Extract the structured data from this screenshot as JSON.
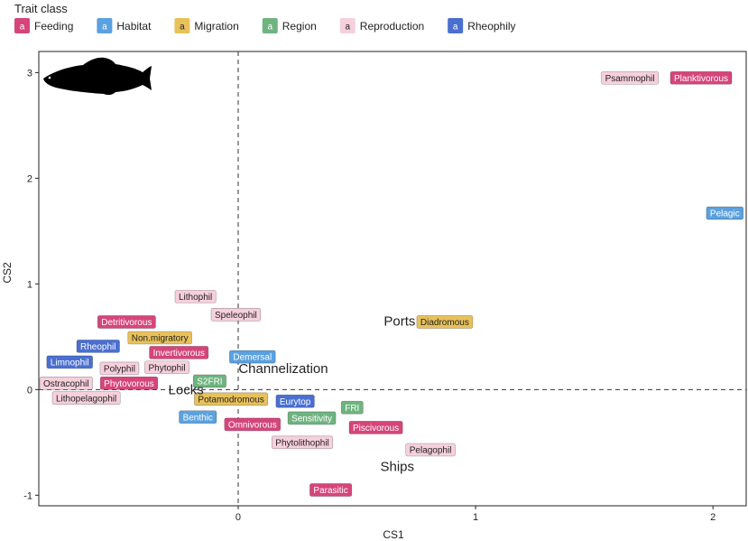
{
  "chart_data": {
    "type": "scatter",
    "xlabel": "CS1",
    "ylabel": "CS2",
    "xlim": [
      -0.84,
      2.14
    ],
    "ylim": [
      -1.1,
      3.2
    ],
    "xticks": [
      0,
      1,
      2
    ],
    "yticks": [
      -1,
      0,
      1,
      2,
      3
    ],
    "reference_lines": {
      "x": 0,
      "y": 0,
      "style": "dashed"
    },
    "legend": {
      "title": "Trait class",
      "marker_text": "a",
      "placement": "top",
      "entries": [
        {
          "name": "Feeding",
          "color": "#d6457a",
          "text_color": "#ffffff"
        },
        {
          "name": "Habitat",
          "color": "#5aa1e0",
          "text_color": "#ffffff"
        },
        {
          "name": "Migration",
          "color": "#e8c15a",
          "text_color": "#222222"
        },
        {
          "name": "Region",
          "color": "#6fb47f",
          "text_color": "#ffffff"
        },
        {
          "name": "Reproduction",
          "color": "#f6d0dc",
          "text_color": "#222222"
        },
        {
          "name": "Rheophily",
          "color": "#4a6fd1",
          "text_color": "#ffffff"
        }
      ]
    },
    "traits": [
      {
        "label": "Psammophil",
        "class": "Reproduction",
        "x": 1.65,
        "y": 2.95
      },
      {
        "label": "Planktivorous",
        "class": "Feeding",
        "x": 1.95,
        "y": 2.95
      },
      {
        "label": "Pelagic",
        "class": "Habitat",
        "x": 2.05,
        "y": 1.67
      },
      {
        "label": "Lithophil",
        "class": "Reproduction",
        "x": -0.18,
        "y": 0.88
      },
      {
        "label": "Speleophil",
        "class": "Reproduction",
        "x": -0.01,
        "y": 0.71
      },
      {
        "label": "Detritivorous",
        "class": "Feeding",
        "x": -0.47,
        "y": 0.64
      },
      {
        "label": "Diadromous",
        "class": "Migration",
        "x": 0.87,
        "y": 0.64
      },
      {
        "label": "Non.migratory",
        "class": "Migration",
        "x": -0.33,
        "y": 0.49
      },
      {
        "label": "Rheophil",
        "class": "Rheophily",
        "x": -0.59,
        "y": 0.41
      },
      {
        "label": "Invertivorous",
        "class": "Feeding",
        "x": -0.25,
        "y": 0.35
      },
      {
        "label": "Demersal",
        "class": "Habitat",
        "x": 0.06,
        "y": 0.31
      },
      {
        "label": "Limnophil",
        "class": "Rheophily",
        "x": -0.71,
        "y": 0.26
      },
      {
        "label": "Polyphil",
        "class": "Reproduction",
        "x": -0.5,
        "y": 0.2
      },
      {
        "label": "Phytophil",
        "class": "Reproduction",
        "x": -0.3,
        "y": 0.21
      },
      {
        "label": "S2FRI",
        "class": "Region",
        "x": -0.12,
        "y": 0.08
      },
      {
        "label": "Ostracophil",
        "class": "Reproduction",
        "x": -0.76,
        "y": 0.06
      },
      {
        "label": "Phytovorous",
        "class": "Feeding",
        "x": -0.46,
        "y": 0.06
      },
      {
        "label": "Lithopelagophil",
        "class": "Reproduction",
        "x": -0.64,
        "y": -0.08
      },
      {
        "label": "Potamodromous",
        "class": "Migration",
        "x": -0.03,
        "y": -0.09
      },
      {
        "label": "Eurytop",
        "class": "Rheophily",
        "x": 0.24,
        "y": -0.11
      },
      {
        "label": "FRI",
        "class": "Region",
        "x": 0.48,
        "y": -0.17
      },
      {
        "label": "Benthic",
        "class": "Habitat",
        "x": -0.17,
        "y": -0.26
      },
      {
        "label": "Sensitivity",
        "class": "Region",
        "x": 0.31,
        "y": -0.27
      },
      {
        "label": "Omnivorous",
        "class": "Feeding",
        "x": 0.06,
        "y": -0.33
      },
      {
        "label": "Piscivorous",
        "class": "Feeding",
        "x": 0.58,
        "y": -0.36
      },
      {
        "label": "Phytolithophil",
        "class": "Reproduction",
        "x": 0.27,
        "y": -0.5
      },
      {
        "label": "Pelagophil",
        "class": "Reproduction",
        "x": 0.81,
        "y": -0.57
      },
      {
        "label": "Parasitic",
        "class": "Feeding",
        "x": 0.39,
        "y": -0.95
      }
    ],
    "drivers": [
      {
        "label": "Ports",
        "x": 0.68,
        "y": 0.65
      },
      {
        "label": "Channelization",
        "x": 0.19,
        "y": 0.2
      },
      {
        "label": "Locks",
        "x": -0.22,
        "y": 0.0
      },
      {
        "label": "Ships",
        "x": 0.67,
        "y": -0.73
      }
    ]
  }
}
